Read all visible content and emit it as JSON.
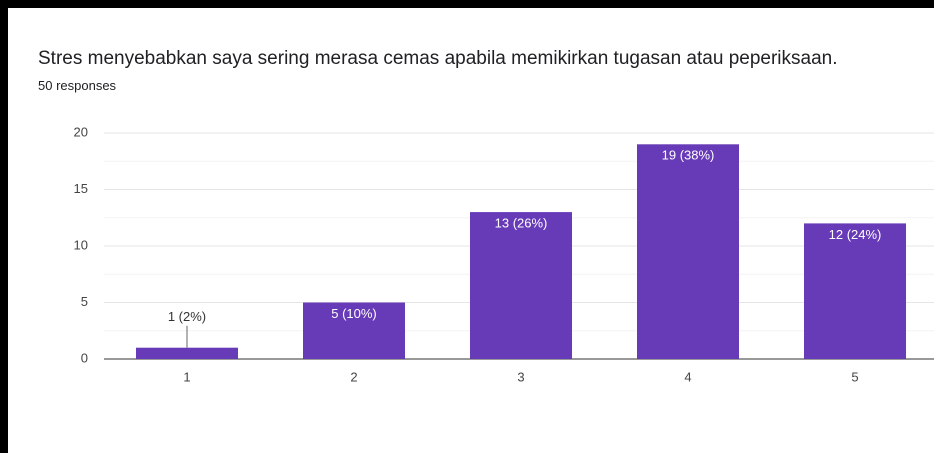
{
  "chart_data": {
    "type": "bar",
    "title": "Stres menyebabkan saya sering merasa cemas apabila memikirkan tugasan atau peperiksaan.",
    "subtitle": "50 responses",
    "categories": [
      "1",
      "2",
      "3",
      "4",
      "5"
    ],
    "values": [
      1,
      5,
      13,
      19,
      12
    ],
    "value_labels": [
      "1 (2%)",
      "5 (10%)",
      "13 (26%)",
      "19 (38%)",
      "12 (24%)"
    ],
    "color": "#673ab7",
    "ylim": [
      0,
      20
    ],
    "yticks": [
      0,
      5,
      10,
      15,
      20
    ],
    "grid": true,
    "minor_grid": true
  }
}
